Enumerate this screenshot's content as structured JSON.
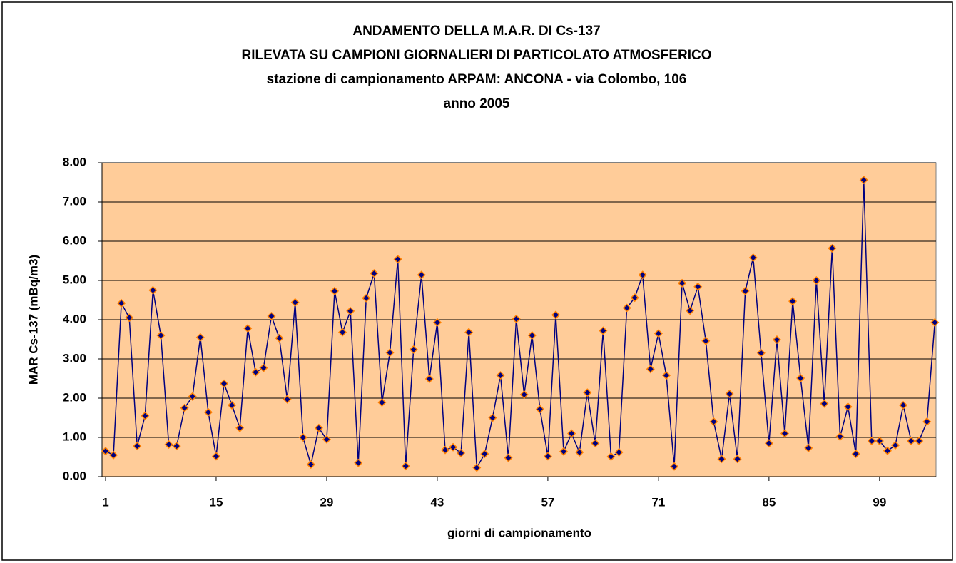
{
  "chart_data": {
    "type": "line",
    "title": [
      "ANDAMENTO DELLA M.A.R. DI Cs-137",
      "RILEVATA SU CAMPIONI GIORNALIERI DI PARTICOLATO ATMOSFERICO",
      "stazione di campionamento ARPAM: ANCONA - via Colombo, 106",
      "anno 2005"
    ],
    "xlabel": "giorni di campionamento",
    "ylabel": "MAR Cs-137 (mBq/m3)",
    "x": [
      1,
      2,
      3,
      4,
      5,
      6,
      7,
      8,
      9,
      10,
      11,
      12,
      13,
      14,
      15,
      16,
      17,
      18,
      19,
      20,
      21,
      22,
      23,
      24,
      25,
      26,
      27,
      28,
      29,
      30,
      31,
      32,
      33,
      34,
      35,
      36,
      37,
      38,
      39,
      40,
      41,
      42,
      43,
      44,
      45,
      46,
      47,
      48,
      49,
      50,
      51,
      52,
      53,
      54,
      55,
      56,
      57,
      58,
      59,
      60,
      61,
      62,
      63,
      64,
      65,
      66,
      67,
      68,
      69,
      70,
      71,
      72,
      73,
      74,
      75,
      76,
      77,
      78,
      79,
      80,
      81,
      82,
      83,
      84,
      85,
      86,
      87,
      88,
      89,
      90,
      91,
      92,
      93,
      94,
      95,
      96,
      97,
      98,
      99,
      100,
      101,
      102,
      103,
      104,
      105,
      106
    ],
    "series": [
      {
        "name": "MAR Cs-137",
        "color": "#000080",
        "marker_edge": "#ff8000",
        "values": [
          0.65,
          0.55,
          4.42,
          4.05,
          0.78,
          1.55,
          4.75,
          3.6,
          0.82,
          0.78,
          1.75,
          2.04,
          3.55,
          1.64,
          0.52,
          2.37,
          1.82,
          1.24,
          3.78,
          2.66,
          2.77,
          4.09,
          3.53,
          1.97,
          4.44,
          1.0,
          0.31,
          1.24,
          0.95,
          4.73,
          3.68,
          4.22,
          0.35,
          4.55,
          5.18,
          1.89,
          3.16,
          5.54,
          0.27,
          3.24,
          5.14,
          2.49,
          3.93,
          0.68,
          0.75,
          0.6,
          3.68,
          0.23,
          0.58,
          1.5,
          2.58,
          0.48,
          4.02,
          2.09,
          3.6,
          1.72,
          0.52,
          4.12,
          0.64,
          1.1,
          0.62,
          2.14,
          0.85,
          3.72,
          0.51,
          0.62,
          4.3,
          4.56,
          5.14,
          2.74,
          3.65,
          2.58,
          0.26,
          4.93,
          4.23,
          4.84,
          3.46,
          1.4,
          0.45,
          2.11,
          0.45,
          4.73,
          5.58,
          3.15,
          0.85,
          3.49,
          1.1,
          4.47,
          2.51,
          0.73,
          5.0,
          1.86,
          5.82,
          1.02,
          1.78,
          0.58,
          7.56,
          0.91,
          0.91,
          0.66,
          0.8,
          1.82,
          0.91,
          0.91,
          1.4,
          3.93
        ]
      }
    ],
    "xlim": [
      0.55,
      106.15
    ],
    "xticks": [
      1,
      15,
      29,
      43,
      57,
      71,
      85,
      99
    ],
    "ylim": [
      0,
      8
    ],
    "yticks": [
      {
        "value": 0,
        "label": "0.00"
      },
      {
        "value": 1,
        "label": "1.00"
      },
      {
        "value": 2,
        "label": "2.00"
      },
      {
        "value": 3,
        "label": "3.00"
      },
      {
        "value": 4,
        "label": "4.00"
      },
      {
        "value": 5,
        "label": "5.00"
      },
      {
        "value": 6,
        "label": "6.00"
      },
      {
        "value": 7,
        "label": "7.00"
      },
      {
        "value": 8,
        "label": "8.00"
      }
    ],
    "grid": true,
    "plot_background": "#ffcc99"
  }
}
